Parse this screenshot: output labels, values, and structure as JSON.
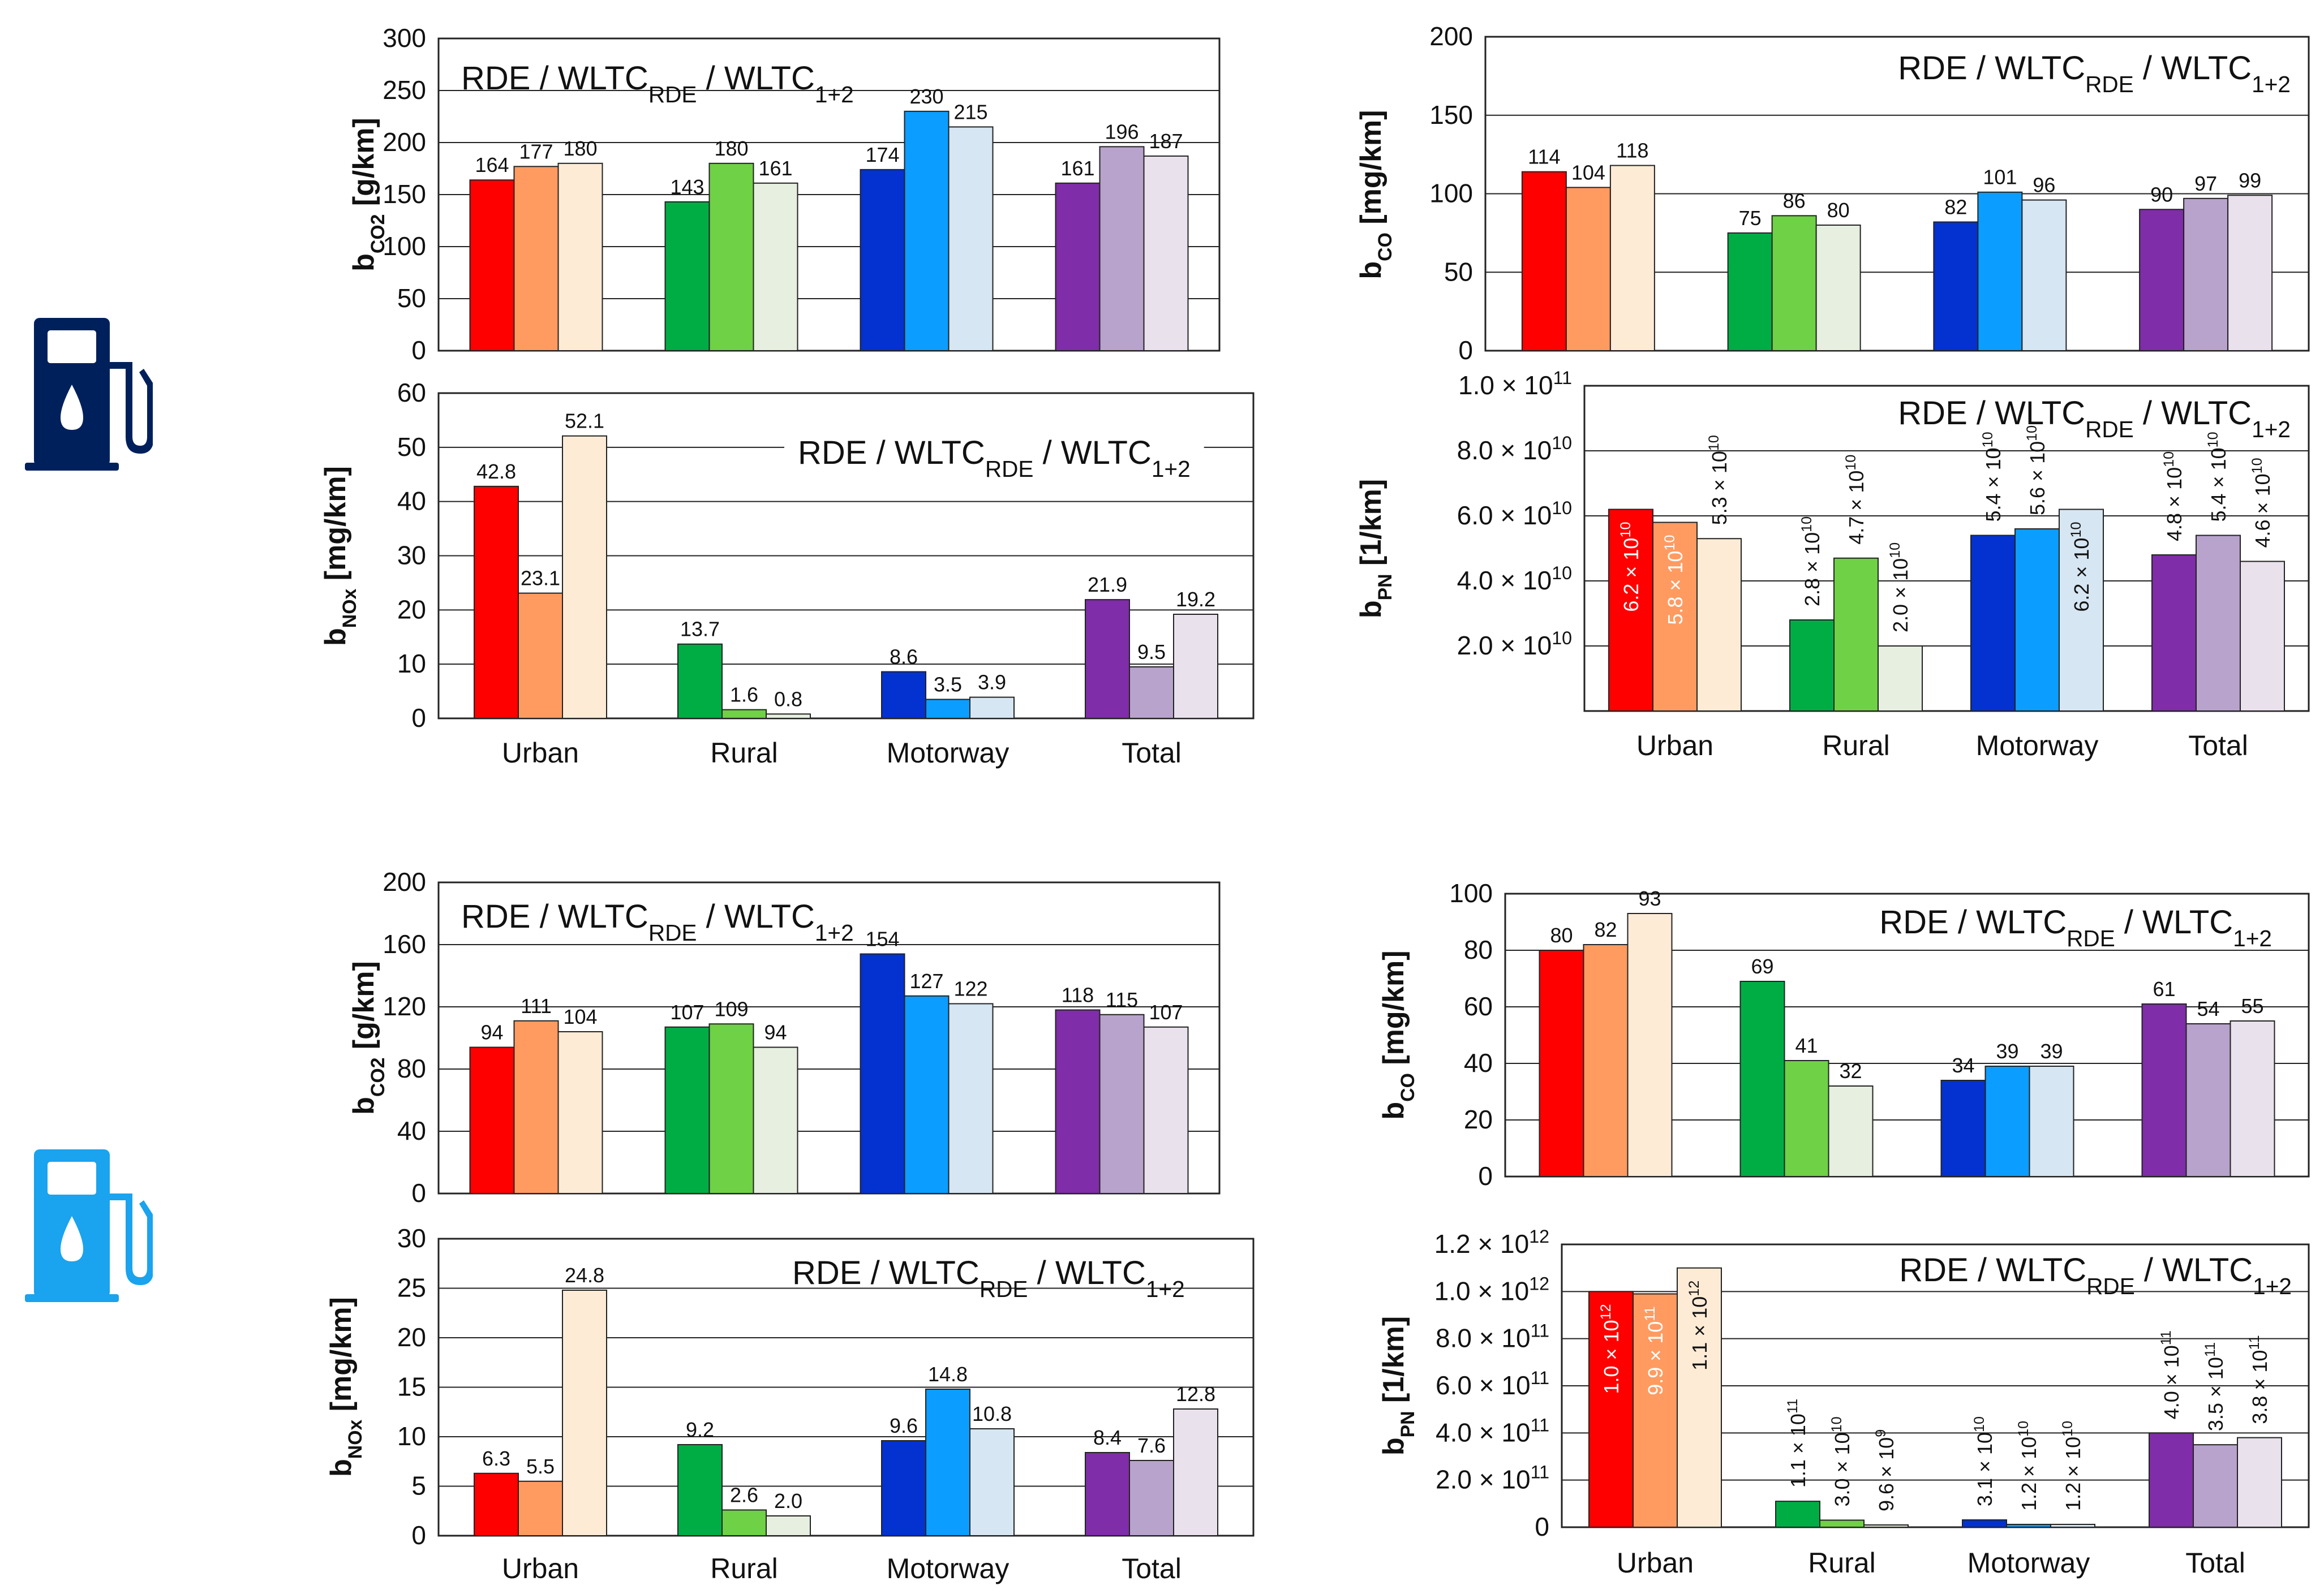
{
  "colors": {
    "urban": [
      "#ff0000",
      "#ff9b61",
      "#fdebd6"
    ],
    "rural": [
      "#00ad45",
      "#6fd145",
      "#e6efe0"
    ],
    "motorway": [
      "#0332d1",
      "#0b9dff",
      "#d6e6f2"
    ],
    "total": [
      "#7f2da8",
      "#b8a3cc",
      "#e9e1ec"
    ],
    "icon_top": "#00205c",
    "icon_bottom": "#1aa3ee"
  },
  "icons": [
    {
      "name": "fuel-pump-icon",
      "variant": "dark-blue"
    },
    {
      "name": "fuel-pump-icon",
      "variant": "light-blue"
    }
  ],
  "chart_data": [
    {
      "id": "vehicle1-co2",
      "type": "bar",
      "legend": {
        "main": "RDE / WLTC",
        "sub1": "RDE",
        "mid": " / WLTC",
        "sub2": "1+2"
      },
      "ylabel": {
        "main": "b",
        "sub": "CO2",
        "unit": " [g/km]"
      },
      "ylim": [
        0,
        300
      ],
      "yticks": [
        0,
        50,
        100,
        150,
        200,
        250,
        300
      ],
      "categories": [
        "Urban",
        "Rural",
        "Motorway",
        "Total"
      ],
      "show_xlabels": false,
      "series": [
        {
          "name": "RDE",
          "values": [
            164,
            143,
            174,
            161
          ]
        },
        {
          "name": "WLTC RDE",
          "values": [
            177,
            180,
            230,
            196
          ]
        },
        {
          "name": "WLTC 1+2",
          "values": [
            180,
            161,
            215,
            187
          ]
        }
      ],
      "labels": [
        [
          "164",
          "177",
          "180"
        ],
        [
          "143",
          "180",
          "161"
        ],
        [
          "174",
          "230",
          "215"
        ],
        [
          "161",
          "196",
          "187"
        ]
      ]
    },
    {
      "id": "vehicle1-nox",
      "type": "bar",
      "legend": {
        "main": "RDE / WLTC",
        "sub1": "RDE",
        "mid": " / WLTC",
        "sub2": "1+2"
      },
      "ylabel": {
        "main": "b",
        "sub": "NOx",
        "unit": " [mg/km]"
      },
      "ylim": [
        0,
        60
      ],
      "yticks": [
        0,
        10,
        20,
        30,
        40,
        50,
        60
      ],
      "categories": [
        "Urban",
        "Rural",
        "Motorway",
        "Total"
      ],
      "show_xlabels": true,
      "series": [
        {
          "name": "RDE",
          "values": [
            42.8,
            13.7,
            8.6,
            21.9
          ]
        },
        {
          "name": "WLTC RDE",
          "values": [
            23.1,
            1.6,
            3.5,
            9.5
          ]
        },
        {
          "name": "WLTC 1+2",
          "values": [
            52.1,
            0.8,
            3.9,
            19.2
          ]
        }
      ],
      "labels": [
        [
          "42.8",
          "23.1",
          "52.1"
        ],
        [
          "13.7",
          "1.6",
          "0.8"
        ],
        [
          "8.6",
          "3.5",
          "3.9"
        ],
        [
          "21.9",
          "9.5",
          "19.2"
        ]
      ]
    },
    {
      "id": "vehicle1-co",
      "type": "bar",
      "legend": {
        "main": "RDE / WLTC",
        "sub1": "RDE",
        "mid": " / WLTC",
        "sub2": "1+2"
      },
      "ylabel": {
        "main": "b",
        "sub": "CO",
        "unit": " [mg/km]"
      },
      "ylim": [
        0,
        200
      ],
      "yticks": [
        0,
        50,
        100,
        150,
        200
      ],
      "categories": [
        "Urban",
        "Rural",
        "Motorway",
        "Total"
      ],
      "show_xlabels": false,
      "series": [
        {
          "name": "RDE",
          "values": [
            114,
            75,
            82,
            90
          ]
        },
        {
          "name": "WLTC RDE",
          "values": [
            104,
            86,
            101,
            97
          ]
        },
        {
          "name": "WLTC 1+2",
          "values": [
            118,
            80,
            96,
            99
          ]
        }
      ],
      "labels": [
        [
          "114",
          "104",
          "118"
        ],
        [
          "75",
          "86",
          "80"
        ],
        [
          "82",
          "101",
          "96"
        ],
        [
          "90",
          "97",
          "99"
        ]
      ]
    },
    {
      "id": "vehicle1-pn",
      "type": "bar",
      "legend": {
        "main": "RDE / WLTC",
        "sub1": "RDE",
        "mid": " / WLTC",
        "sub2": "1+2"
      },
      "ylabel": {
        "main": "b",
        "sub": "PN",
        "unit": " [1/km]"
      },
      "ylim": [
        0,
        100000000000.0
      ],
      "yticks": [
        {
          "value": 20000000000.0,
          "m": "2.0",
          "e": "10"
        },
        {
          "value": 40000000000.0,
          "m": "4.0",
          "e": "10"
        },
        {
          "value": 60000000000.0,
          "m": "6.0",
          "e": "10"
        },
        {
          "value": 80000000000.0,
          "m": "8.0",
          "e": "10"
        },
        {
          "value": 100000000000.0,
          "m": "1.0",
          "e": "11"
        }
      ],
      "categories": [
        "Urban",
        "Rural",
        "Motorway",
        "Total"
      ],
      "show_xlabels": true,
      "series": [
        {
          "name": "RDE",
          "values": [
            62000000000.0,
            28000000000.0,
            54000000000.0,
            48000000000.0
          ]
        },
        {
          "name": "WLTC RDE",
          "values": [
            58000000000.0,
            47000000000.0,
            56000000000.0,
            54000000000.0
          ]
        },
        {
          "name": "WLTC 1+2",
          "values": [
            53000000000.0,
            20000000000.0,
            62000000000.0,
            46000000000.0
          ]
        }
      ],
      "labels": [
        [
          {
            "m": "6.2",
            "e": "10"
          },
          {
            "m": "5.8",
            "e": "10"
          },
          {
            "m": "5.3",
            "e": "10"
          }
        ],
        [
          {
            "m": "2.8",
            "e": "10"
          },
          {
            "m": "4.7",
            "e": "10"
          },
          {
            "m": "2.0",
            "e": "10"
          }
        ],
        [
          {
            "m": "5.4",
            "e": "10"
          },
          {
            "m": "5.6",
            "e": "10"
          },
          {
            "m": "6.2",
            "e": "10"
          }
        ],
        [
          {
            "m": "4.8",
            "e": "10"
          },
          {
            "m": "5.4",
            "e": "10"
          },
          {
            "m": "4.6",
            "e": "10"
          }
        ]
      ]
    },
    {
      "id": "vehicle2-co2",
      "type": "bar",
      "legend": {
        "main": "RDE / WLTC",
        "sub1": "RDE",
        "mid": " / WLTC",
        "sub2": "1+2"
      },
      "ylabel": {
        "main": "b",
        "sub": "CO2",
        "unit": " [g/km]"
      },
      "ylim": [
        0,
        200
      ],
      "yticks": [
        0,
        40,
        80,
        120,
        160,
        200
      ],
      "categories": [
        "Urban",
        "Rural",
        "Motorway",
        "Total"
      ],
      "show_xlabels": false,
      "series": [
        {
          "name": "RDE",
          "values": [
            94,
            107,
            154,
            118
          ]
        },
        {
          "name": "WLTC RDE",
          "values": [
            111,
            109,
            127,
            115
          ]
        },
        {
          "name": "WLTC 1+2",
          "values": [
            104,
            94,
            122,
            107
          ]
        }
      ],
      "labels": [
        [
          "94",
          "111",
          "104"
        ],
        [
          "107",
          "109",
          "94"
        ],
        [
          "154",
          "127",
          "122"
        ],
        [
          "118",
          "115",
          "107"
        ]
      ]
    },
    {
      "id": "vehicle2-nox",
      "type": "bar",
      "legend": {
        "main": "RDE / WLTC",
        "sub1": "RDE",
        "mid": " / WLTC",
        "sub2": "1+2"
      },
      "ylabel": {
        "main": "b",
        "sub": "NOx",
        "unit": " [mg/km]"
      },
      "ylim": [
        0,
        30
      ],
      "yticks": [
        0,
        5,
        10,
        15,
        20,
        25,
        30
      ],
      "categories": [
        "Urban",
        "Rural",
        "Motorway",
        "Total"
      ],
      "show_xlabels": true,
      "series": [
        {
          "name": "RDE",
          "values": [
            6.3,
            9.2,
            9.6,
            8.4
          ]
        },
        {
          "name": "WLTC RDE",
          "values": [
            5.5,
            2.6,
            14.8,
            7.6
          ]
        },
        {
          "name": "WLTC 1+2",
          "values": [
            24.8,
            2.0,
            10.8,
            12.8
          ]
        }
      ],
      "labels": [
        [
          "6.3",
          "5.5",
          "24.8"
        ],
        [
          "9.2",
          "2.6",
          "2.0"
        ],
        [
          "9.6",
          "14.8",
          "10.8"
        ],
        [
          "8.4",
          "7.6",
          "12.8"
        ]
      ]
    },
    {
      "id": "vehicle2-co",
      "type": "bar",
      "legend": {
        "main": "RDE / WLTC",
        "sub1": "RDE",
        "mid": " / WLTC",
        "sub2": "1+2"
      },
      "ylabel": {
        "main": "b",
        "sub": "CO",
        "unit": " [mg/km]"
      },
      "ylim": [
        0,
        100
      ],
      "yticks": [
        0,
        20,
        40,
        60,
        80,
        100
      ],
      "categories": [
        "Urban",
        "Rural",
        "Motorway",
        "Total"
      ],
      "show_xlabels": false,
      "series": [
        {
          "name": "RDE",
          "values": [
            80,
            69,
            34,
            61
          ]
        },
        {
          "name": "WLTC RDE",
          "values": [
            82,
            41,
            39,
            54
          ]
        },
        {
          "name": "WLTC 1+2",
          "values": [
            93,
            32,
            39,
            55
          ]
        }
      ],
      "labels": [
        [
          "80",
          "82",
          "93"
        ],
        [
          "69",
          "41",
          "32"
        ],
        [
          "34",
          "39",
          "39"
        ],
        [
          "61",
          "54",
          "55"
        ]
      ]
    },
    {
      "id": "vehicle2-pn",
      "type": "bar",
      "legend": {
        "main": "RDE / WLTC",
        "sub1": "RDE",
        "mid": " / WLTC",
        "sub2": "1+2"
      },
      "ylabel": {
        "main": "b",
        "sub": "PN",
        "unit": " [1/km]"
      },
      "ylim": [
        0,
        1200000000000.0
      ],
      "yticks": [
        {
          "value": 0,
          "plain": "0"
        },
        {
          "value": 200000000000.0,
          "m": "2.0",
          "e": "11"
        },
        {
          "value": 400000000000.0,
          "m": "4.0",
          "e": "11"
        },
        {
          "value": 600000000000.0,
          "m": "6.0",
          "e": "11"
        },
        {
          "value": 800000000000.0,
          "m": "8.0",
          "e": "11"
        },
        {
          "value": 1000000000000.0,
          "m": "1.0",
          "e": "12"
        },
        {
          "value": 1200000000000.0,
          "m": "1.2",
          "e": "12"
        }
      ],
      "categories": [
        "Urban",
        "Rural",
        "Motorway",
        "Total"
      ],
      "show_xlabels": true,
      "series": [
        {
          "name": "RDE",
          "values": [
            1000000000000.0,
            110000000000.0,
            31000000000.0,
            400000000000.0
          ]
        },
        {
          "name": "WLTC RDE",
          "values": [
            990000000000.0,
            30000000000.0,
            12000000000.0,
            350000000000.0
          ]
        },
        {
          "name": "WLTC 1+2",
          "values": [
            1100000000000.0,
            9600000000.0,
            12000000000.0,
            380000000000.0
          ]
        }
      ],
      "labels": [
        [
          {
            "m": "1.0",
            "e": "12"
          },
          {
            "m": "9.9",
            "e": "11"
          },
          {
            "m": "1.1",
            "e": "12"
          }
        ],
        [
          {
            "m": "1.1",
            "e": "11"
          },
          {
            "m": "3.0",
            "e": "10"
          },
          {
            "m": "9.6",
            "e": "9"
          }
        ],
        [
          {
            "m": "3.1",
            "e": "10"
          },
          {
            "m": "1.2",
            "e": "10"
          },
          {
            "m": "1.2",
            "e": "10"
          }
        ],
        [
          {
            "m": "4.0",
            "e": "11"
          },
          {
            "m": "3.5",
            "e": "11"
          },
          {
            "m": "3.8",
            "e": "11"
          }
        ]
      ]
    }
  ]
}
